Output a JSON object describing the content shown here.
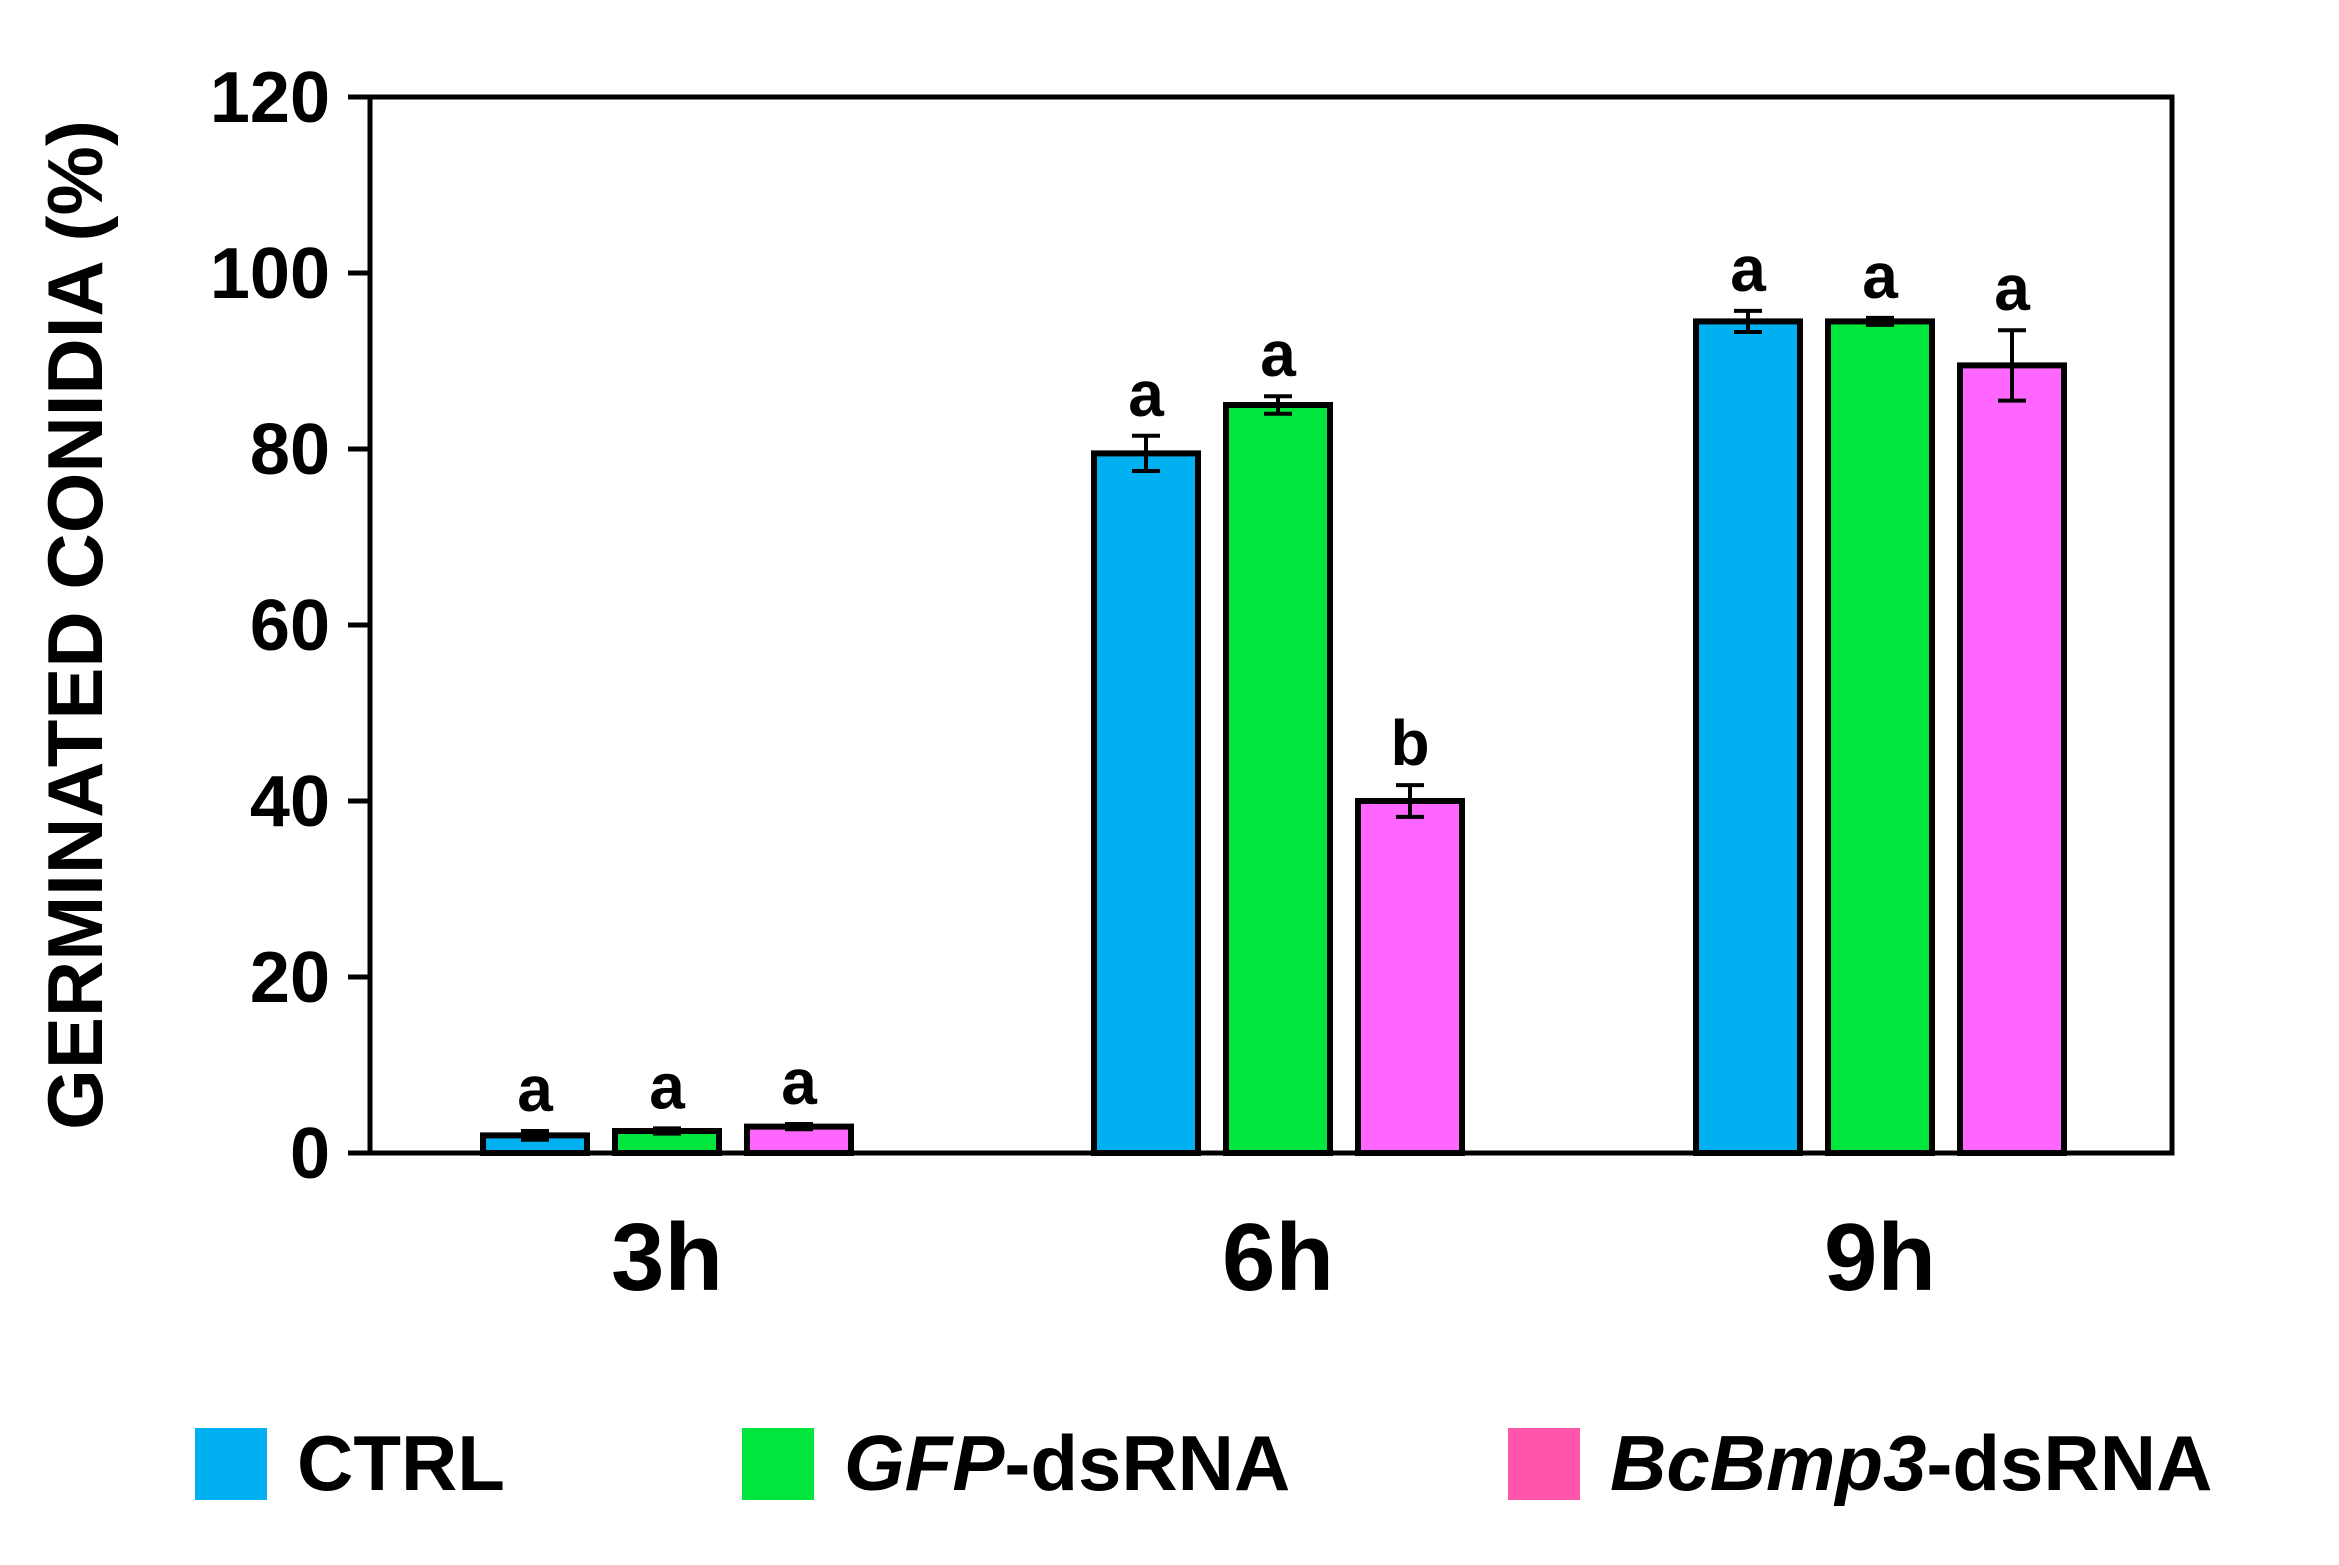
{
  "chart_data": {
    "type": "bar",
    "ylabel": "GERMINATED CONIDIA (%)",
    "xlabel": "",
    "ylim": [
      0,
      120
    ],
    "yticks": [
      "0",
      "20",
      "40",
      "60",
      "80",
      "100",
      "120"
    ],
    "categories": [
      "3h",
      "6h",
      "9h"
    ],
    "grid": false,
    "legend_position": "bottom",
    "series": [
      {
        "name_parts": [
          {
            "text": "CTRL",
            "italic": false
          }
        ],
        "color": "#00B0F0",
        "values": [
          2,
          79.5,
          94.5
        ],
        "errors": [
          0.5,
          2,
          1.2
        ],
        "labels": [
          "a",
          "a",
          "a"
        ]
      },
      {
        "name_parts": [
          {
            "text": "GFP",
            "italic": true
          },
          {
            "text": "-dsRNA",
            "italic": false
          }
        ],
        "color": "#00E63C",
        "values": [
          2.5,
          85,
          94.5
        ],
        "errors": [
          0.3,
          1,
          0.4
        ],
        "labels": [
          "a",
          "a",
          "a"
        ]
      },
      {
        "name_parts": [
          {
            "text": "BcBmp3",
            "italic": true
          },
          {
            "text": "-dsRNA",
            "italic": false
          }
        ],
        "color": "#FF66FF",
        "legend_color": "#FF55AA",
        "values": [
          3,
          40,
          89.5
        ],
        "errors": [
          0.3,
          1.8,
          4
        ],
        "labels": [
          "a",
          "b",
          "a"
        ]
      }
    ]
  }
}
